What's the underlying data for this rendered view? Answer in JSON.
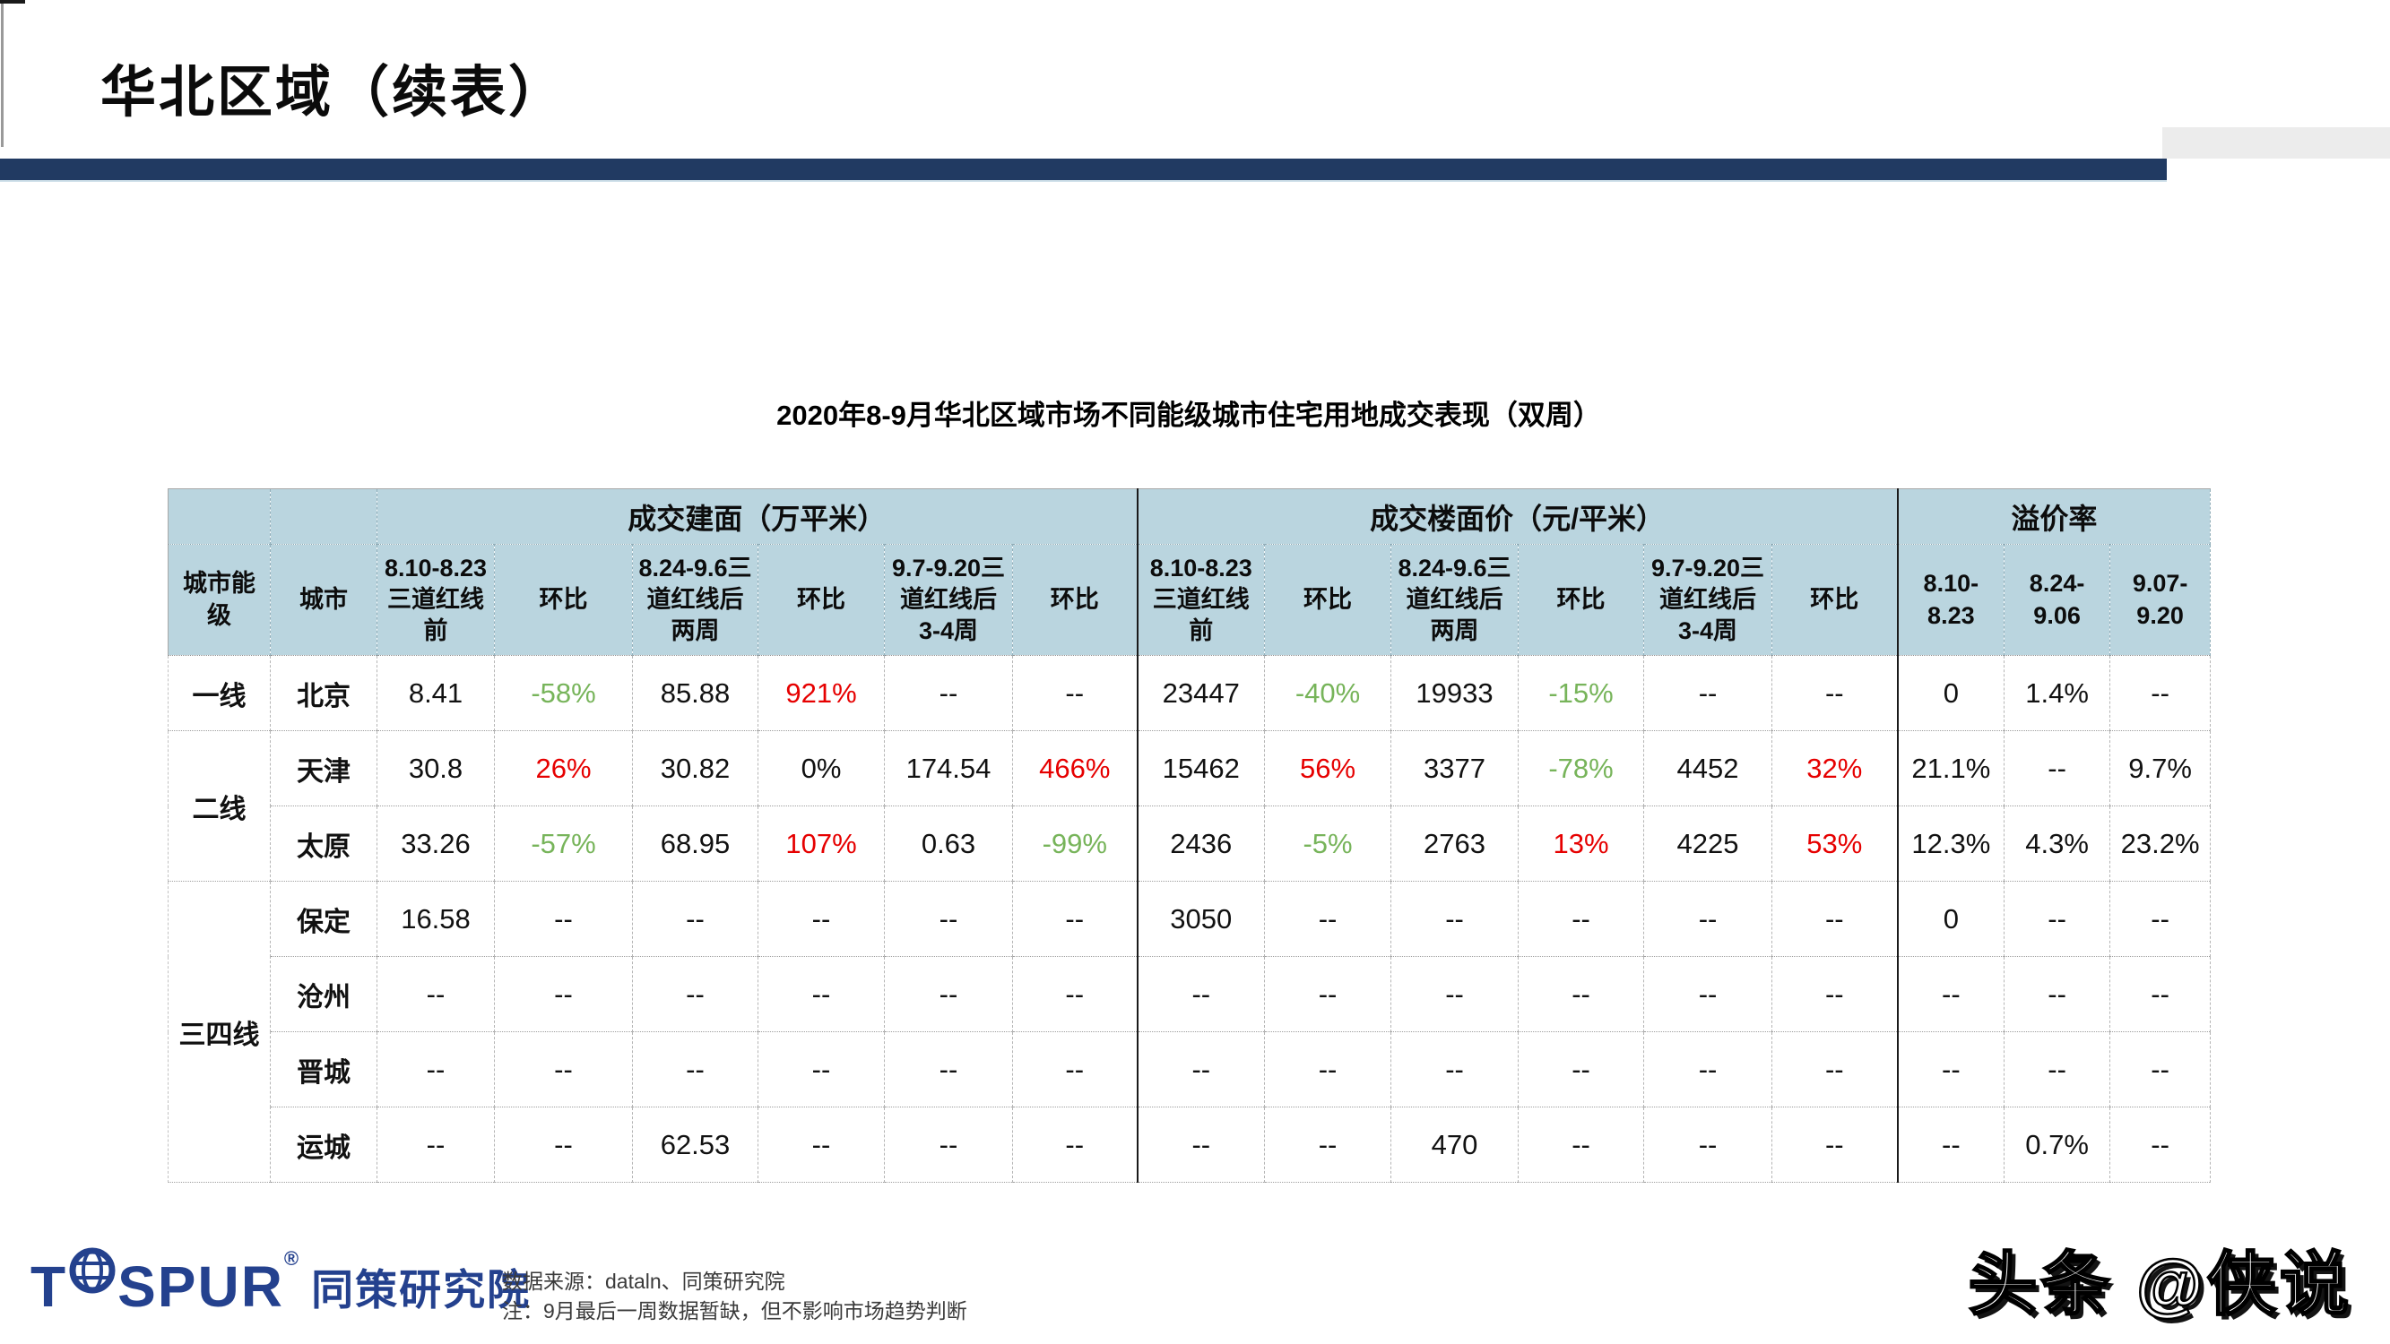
{
  "slide": {
    "title": "华北区域（续表）",
    "accent_color": "#213A62"
  },
  "table": {
    "caption": "2020年8-9月华北区域市场不同能级城市住宅用地成交表现（双周）",
    "header_bg": "#BAD5DF",
    "up_color": "#e60000",
    "down_color": "#77B45A",
    "corner_label": "城市能级",
    "city_label": "城市",
    "groups": [
      {
        "label": "成交建面（万平米）"
      },
      {
        "label": "成交楼面价（元/平米）"
      },
      {
        "label": "溢价率"
      }
    ],
    "sub_headers": [
      "8.10-8.23三道红线前",
      "环比",
      "8.24-9.6三道红线后两周",
      "环比",
      "9.7-9.20三道红线后3-4周",
      "环比",
      "8.10-8.23三道红线前",
      "环比",
      "8.24-9.6三道红线后两周",
      "环比",
      "9.7-9.20三道红线后3-4周",
      "环比",
      "8.10-8.23",
      "8.24-9.06",
      "9.07-9.20"
    ],
    "rows": [
      {
        "tier": "一线",
        "tier_span": 1,
        "city": "北京",
        "cells": [
          {
            "v": "8.41"
          },
          {
            "v": "-58%",
            "c": "down"
          },
          {
            "v": "85.88"
          },
          {
            "v": "921%",
            "c": "up"
          },
          {
            "v": "--"
          },
          {
            "v": "--"
          },
          {
            "v": "23447"
          },
          {
            "v": "-40%",
            "c": "down"
          },
          {
            "v": "19933"
          },
          {
            "v": "-15%",
            "c": "down"
          },
          {
            "v": "--"
          },
          {
            "v": "--"
          },
          {
            "v": "0"
          },
          {
            "v": "1.4%"
          },
          {
            "v": "--"
          }
        ]
      },
      {
        "tier": "二线",
        "tier_span": 2,
        "city": "天津",
        "cells": [
          {
            "v": "30.8"
          },
          {
            "v": "26%",
            "c": "up"
          },
          {
            "v": "30.82"
          },
          {
            "v": "0%"
          },
          {
            "v": "174.54"
          },
          {
            "v": "466%",
            "c": "up"
          },
          {
            "v": "15462"
          },
          {
            "v": "56%",
            "c": "up"
          },
          {
            "v": "3377"
          },
          {
            "v": "-78%",
            "c": "down"
          },
          {
            "v": "4452"
          },
          {
            "v": "32%",
            "c": "up"
          },
          {
            "v": "21.1%"
          },
          {
            "v": "--"
          },
          {
            "v": "9.7%"
          }
        ]
      },
      {
        "city": "太原",
        "cells": [
          {
            "v": "33.26"
          },
          {
            "v": "-57%",
            "c": "down"
          },
          {
            "v": "68.95"
          },
          {
            "v": "107%",
            "c": "up"
          },
          {
            "v": "0.63"
          },
          {
            "v": "-99%",
            "c": "down"
          },
          {
            "v": "2436"
          },
          {
            "v": "-5%",
            "c": "down"
          },
          {
            "v": "2763"
          },
          {
            "v": "13%",
            "c": "up"
          },
          {
            "v": "4225"
          },
          {
            "v": "53%",
            "c": "up"
          },
          {
            "v": "12.3%"
          },
          {
            "v": "4.3%"
          },
          {
            "v": "23.2%"
          }
        ]
      },
      {
        "tier": "三四线",
        "tier_span": 4,
        "city": "保定",
        "cells": [
          {
            "v": "16.58"
          },
          {
            "v": "--"
          },
          {
            "v": "--"
          },
          {
            "v": "--"
          },
          {
            "v": "--"
          },
          {
            "v": "--"
          },
          {
            "v": "3050"
          },
          {
            "v": "--"
          },
          {
            "v": "--"
          },
          {
            "v": "--"
          },
          {
            "v": "--"
          },
          {
            "v": "--"
          },
          {
            "v": "0"
          },
          {
            "v": "--"
          },
          {
            "v": "--"
          }
        ]
      },
      {
        "city": "沧州",
        "cells": [
          {
            "v": "--"
          },
          {
            "v": "--"
          },
          {
            "v": "--"
          },
          {
            "v": "--"
          },
          {
            "v": "--"
          },
          {
            "v": "--"
          },
          {
            "v": "--"
          },
          {
            "v": "--"
          },
          {
            "v": "--"
          },
          {
            "v": "--"
          },
          {
            "v": "--"
          },
          {
            "v": "--"
          },
          {
            "v": "--"
          },
          {
            "v": "--"
          },
          {
            "v": "--"
          }
        ]
      },
      {
        "city": "晋城",
        "cells": [
          {
            "v": "--"
          },
          {
            "v": "--"
          },
          {
            "v": "--"
          },
          {
            "v": "--"
          },
          {
            "v": "--"
          },
          {
            "v": "--"
          },
          {
            "v": "--"
          },
          {
            "v": "--"
          },
          {
            "v": "--"
          },
          {
            "v": "--"
          },
          {
            "v": "--"
          },
          {
            "v": "--"
          },
          {
            "v": "--"
          },
          {
            "v": "--"
          },
          {
            "v": "--"
          }
        ]
      },
      {
        "city": "运城",
        "cells": [
          {
            "v": "--"
          },
          {
            "v": "--"
          },
          {
            "v": "62.53"
          },
          {
            "v": "--"
          },
          {
            "v": "--"
          },
          {
            "v": "--"
          },
          {
            "v": "--"
          },
          {
            "v": "--"
          },
          {
            "v": "470"
          },
          {
            "v": "--"
          },
          {
            "v": "--"
          },
          {
            "v": "--"
          },
          {
            "v": "--"
          },
          {
            "v": "0.7%"
          },
          {
            "v": "--"
          }
        ]
      }
    ]
  },
  "footer": {
    "logo": {
      "t": "T",
      "rest": "SPUR",
      "reg": "®",
      "cn": "同策研究院",
      "color": "#24418E"
    },
    "source_line1": "数据来源：dataln、同策研究院",
    "source_line2": "注：9月最后一周数据暂缺，但不影响市场趋势判断"
  },
  "watermark": "头条 @侠说"
}
